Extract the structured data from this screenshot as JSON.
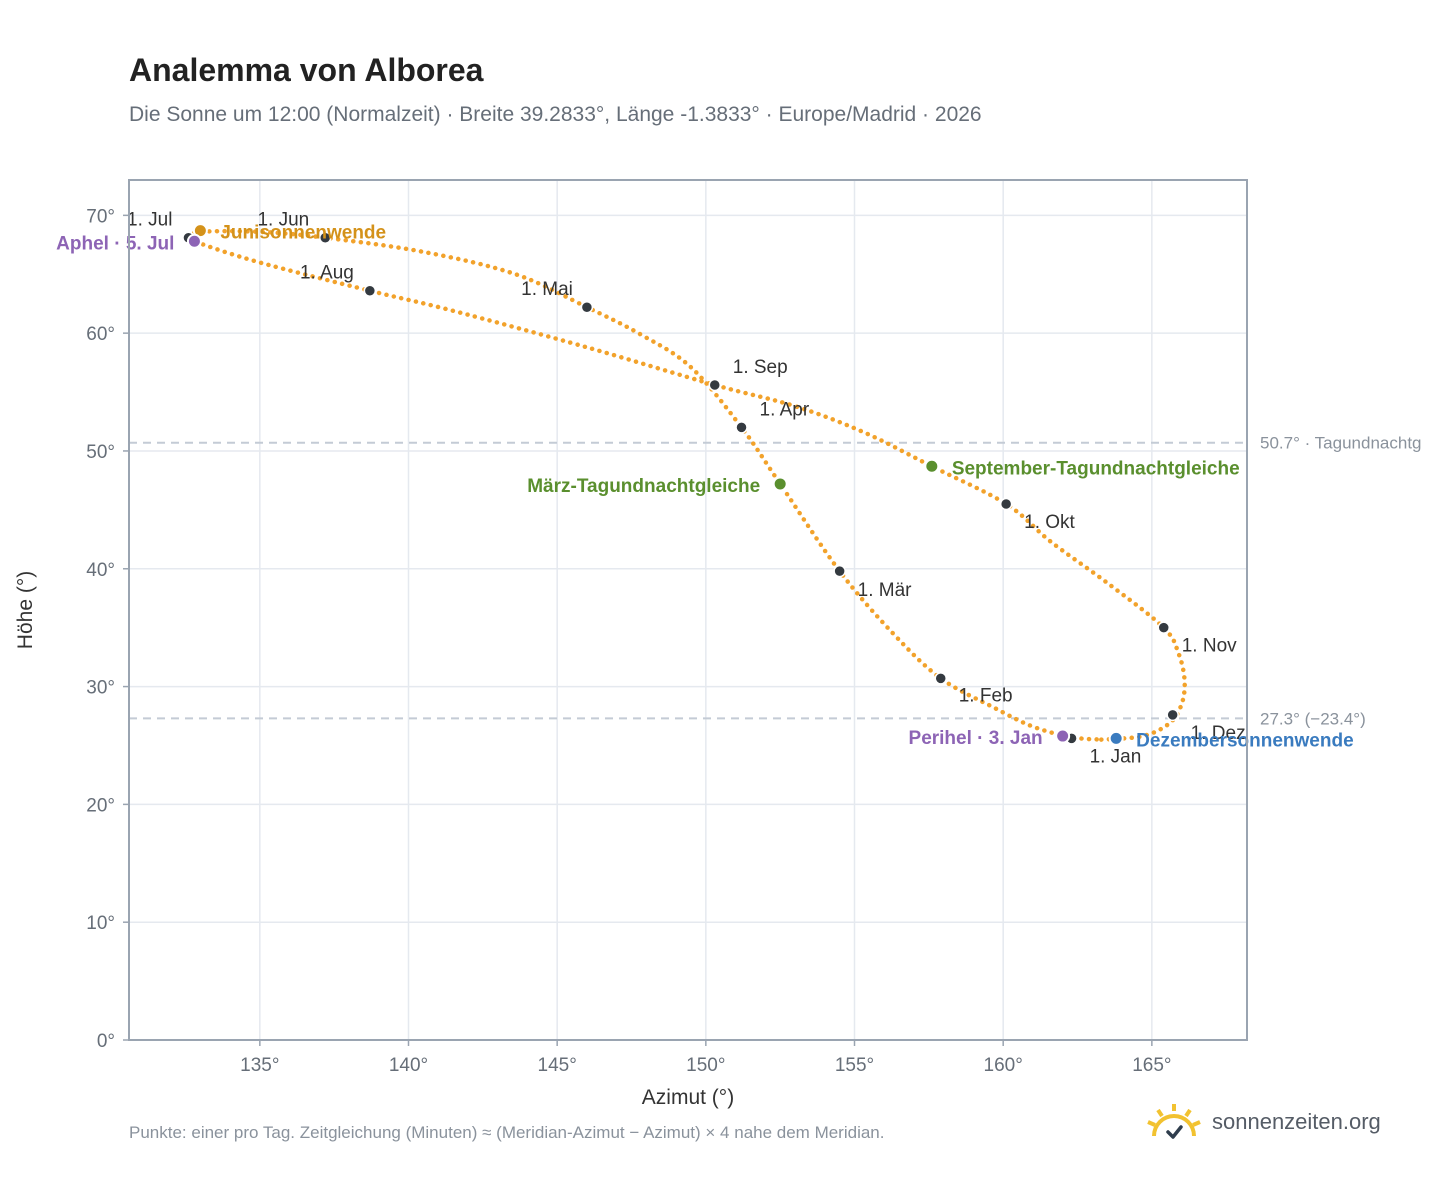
{
  "header": {
    "title": "Analemma von Alborea",
    "subtitle": "Die Sonne um 12:00 (Normalzeit) · Breite 39.2833°, Länge -1.3833° · Europe/Madrid · 2026"
  },
  "footer": {
    "note": "Punkte: einer pro Tag. Zeitgleichung (Minuten) ≈ (Meridian-Azimut − Azimut) × 4 nahe dem Meridian.",
    "brand": "sonnenzeiten.org"
  },
  "colors": {
    "curve": "#f2a22b",
    "month": "#343a40",
    "equinox": "#5a8f2e",
    "june_solstice": "#d4921a",
    "december_solstice": "#3a7bbf",
    "apsis": "#8d64b5",
    "grid": "#e5e9ef",
    "frame": "#9aa4b1",
    "reference": "#c4cbd5",
    "logo": "#f2c230"
  },
  "chart_data": {
    "type": "scatter",
    "xlabel": "Azimut (°)",
    "ylabel": "Höhe (°)",
    "xlim": [
      130.6,
      168.2
    ],
    "ylim": [
      0,
      73
    ],
    "x_ticks": [
      135,
      140,
      145,
      150,
      155,
      160,
      165
    ],
    "x_tick_labels": [
      "135°",
      "140°",
      "145°",
      "150°",
      "155°",
      "160°",
      "165°"
    ],
    "y_ticks": [
      0,
      10,
      20,
      30,
      40,
      50,
      60,
      70
    ],
    "y_tick_labels": [
      "0°",
      "10°",
      "20°",
      "30°",
      "40°",
      "50°",
      "60°",
      "70°"
    ],
    "grid": true,
    "reference_lines": [
      {
        "y": 50.7,
        "label": "50.7° · Tagundnachtg"
      },
      {
        "y": 27.3,
        "label": "27.3° (−23.4°)"
      }
    ],
    "path": [
      [
        163.3,
        25.5
      ],
      [
        164.7,
        25.8
      ],
      [
        165.6,
        26.9
      ],
      [
        166.0,
        28.5
      ],
      [
        166.1,
        30.5
      ],
      [
        165.9,
        32.8
      ],
      [
        165.4,
        35.0
      ],
      [
        163.5,
        38.8
      ],
      [
        161.6,
        42.3
      ],
      [
        160.1,
        45.5
      ],
      [
        157.6,
        48.7
      ],
      [
        155.3,
        51.6
      ],
      [
        153.0,
        53.8
      ],
      [
        150.3,
        55.6
      ],
      [
        146.0,
        58.8
      ],
      [
        141.5,
        61.9
      ],
      [
        138.7,
        63.6
      ],
      [
        135.0,
        66.0
      ],
      [
        132.9,
        67.7
      ],
      [
        132.7,
        68.1
      ],
      [
        133.0,
        68.6
      ],
      [
        135.0,
        68.6
      ],
      [
        137.2,
        68.1
      ],
      [
        140.5,
        66.9
      ],
      [
        143.6,
        65.0
      ],
      [
        146.0,
        62.2
      ],
      [
        147.8,
        59.9
      ],
      [
        149.5,
        57.1
      ],
      [
        151.2,
        52.0
      ],
      [
        152.5,
        47.2
      ],
      [
        154.5,
        39.8
      ],
      [
        156.3,
        34.5
      ],
      [
        157.9,
        30.7
      ],
      [
        159.7,
        28.2
      ],
      [
        161.0,
        26.6
      ],
      [
        162.3,
        25.7
      ],
      [
        163.3,
        25.5
      ]
    ],
    "months": [
      {
        "label": "1. Jan",
        "x": 162.3,
        "y": 25.6
      },
      {
        "label": "1. Feb",
        "x": 157.9,
        "y": 30.7
      },
      {
        "label": "1. Mär",
        "x": 154.5,
        "y": 39.8
      },
      {
        "label": "1. Apr",
        "x": 151.2,
        "y": 52.0
      },
      {
        "label": "1. Mai",
        "x": 146.0,
        "y": 62.2
      },
      {
        "label": "1. Jun",
        "x": 137.2,
        "y": 68.1
      },
      {
        "label": "1. Jul",
        "x": 132.6,
        "y": 68.1
      },
      {
        "label": "1. Aug",
        "x": 138.7,
        "y": 63.6
      },
      {
        "label": "1. Sep",
        "x": 150.3,
        "y": 55.6
      },
      {
        "label": "1. Okt",
        "x": 160.1,
        "y": 45.5
      },
      {
        "label": "1. Nov",
        "x": 165.4,
        "y": 35.0
      },
      {
        "label": "1. Dez",
        "x": 165.7,
        "y": 27.6
      }
    ],
    "events": [
      {
        "label": "Junisonnenwende",
        "x": 133.0,
        "y": 68.7,
        "kind": "june_solstice"
      },
      {
        "label": "Aphel · 5. Jul",
        "x": 132.8,
        "y": 67.8,
        "kind": "apsis"
      },
      {
        "label": "März-Tagundnachtgleiche",
        "x": 152.5,
        "y": 47.2,
        "kind": "equinox"
      },
      {
        "label": "September-Tagundnachtgleiche",
        "x": 157.6,
        "y": 48.7,
        "kind": "equinox"
      },
      {
        "label": "Perihel · 3. Jan",
        "x": 162.0,
        "y": 25.8,
        "kind": "apsis"
      },
      {
        "label": "Dezembersonnenwende",
        "x": 163.8,
        "y": 25.6,
        "kind": "december_solstice"
      }
    ]
  }
}
